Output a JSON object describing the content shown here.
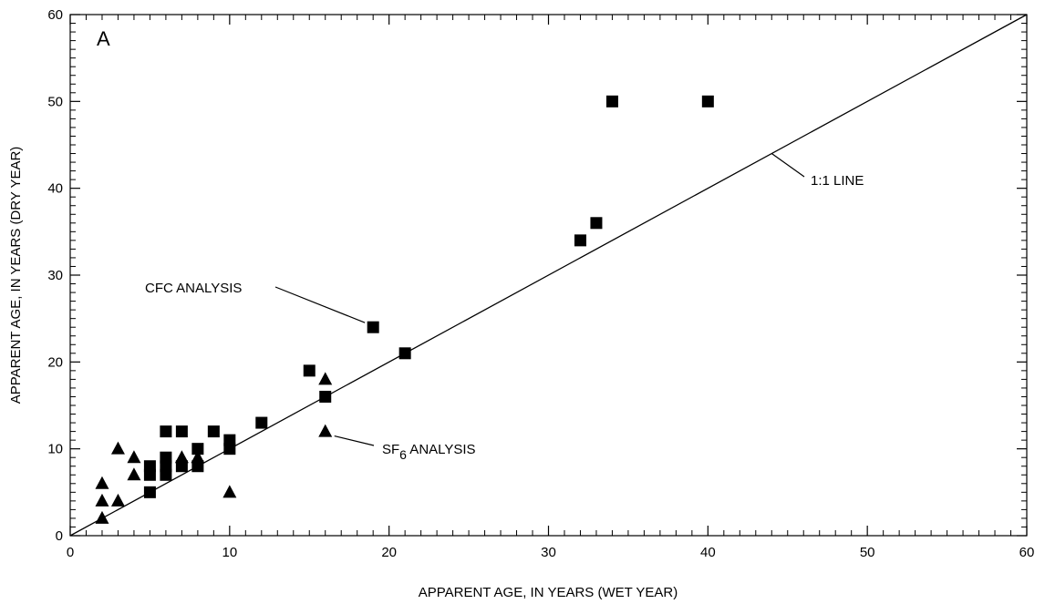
{
  "chart_data": {
    "type": "scatter",
    "panel_label": "A",
    "xlabel": "APPARENT AGE, IN YEARS (WET YEAR)",
    "ylabel": "APPARENT AGE, IN YEARS (DRY YEAR)",
    "xlim": [
      0,
      60
    ],
    "ylim": [
      0,
      60
    ],
    "xticks": [
      0,
      10,
      20,
      30,
      40,
      50,
      60
    ],
    "yticks": [
      0,
      10,
      20,
      30,
      40,
      50,
      60
    ],
    "minor_tick_step": 1,
    "grid": false,
    "reference_line": {
      "label": "1:1 LINE",
      "from": [
        0,
        0
      ],
      "to": [
        60,
        60
      ]
    },
    "series": [
      {
        "name": "CFC ANALYSIS",
        "marker": "square",
        "points": [
          [
            34,
            50
          ],
          [
            40,
            50
          ],
          [
            32,
            34
          ],
          [
            33,
            36
          ],
          [
            19,
            24
          ],
          [
            21,
            21
          ],
          [
            15,
            19
          ],
          [
            16,
            16
          ],
          [
            12,
            13
          ],
          [
            10,
            11
          ],
          [
            10,
            10
          ],
          [
            9,
            12
          ],
          [
            8,
            10
          ],
          [
            8,
            8
          ],
          [
            7,
            12
          ],
          [
            7,
            8
          ],
          [
            6,
            12
          ],
          [
            6,
            9
          ],
          [
            6,
            8
          ],
          [
            6,
            7
          ],
          [
            5,
            8
          ],
          [
            5,
            7
          ],
          [
            5,
            5
          ]
        ]
      },
      {
        "name": "SF6 ANALYSIS",
        "marker": "triangle",
        "points": [
          [
            16,
            18
          ],
          [
            16,
            12
          ],
          [
            10,
            5
          ],
          [
            8,
            9
          ],
          [
            7,
            9
          ],
          [
            4,
            9
          ],
          [
            4,
            7
          ],
          [
            3,
            10
          ],
          [
            3,
            4
          ],
          [
            2,
            6
          ],
          [
            2,
            4
          ],
          [
            2,
            2
          ]
        ]
      }
    ],
    "annotations": {
      "cfc": {
        "text": "CFC ANALYSIS",
        "points_to": [
          19,
          24
        ]
      },
      "sf6": {
        "prefix": "SF",
        "subscript": "6",
        "suffix": " ANALYSIS",
        "points_to": [
          16,
          12
        ]
      },
      "line": {
        "text": "1:1 LINE",
        "points_to": [
          44,
          44
        ]
      }
    }
  }
}
